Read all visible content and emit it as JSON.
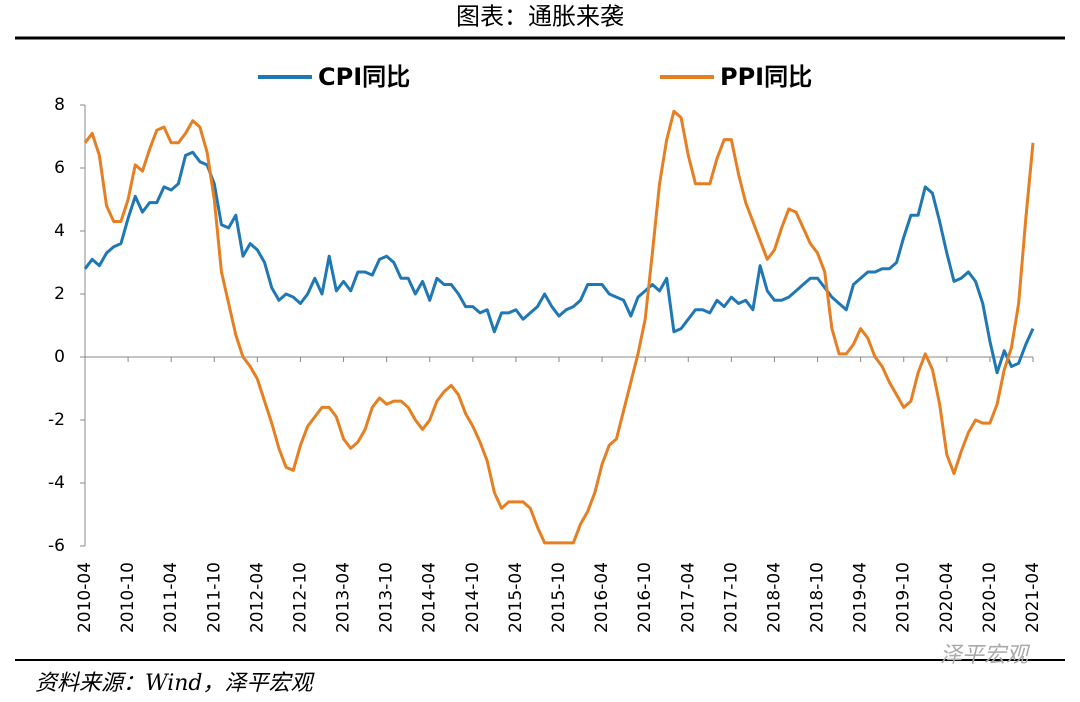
{
  "chart_data": {
    "type": "line",
    "title": "图表：通胀来袭",
    "source": "资料来源：Wind，泽平宏观",
    "watermark": "泽平宏观",
    "categories": [
      "2010-04",
      null,
      null,
      null,
      null,
      null,
      "2010-10",
      null,
      null,
      null,
      null,
      null,
      "2011-04",
      null,
      null,
      null,
      null,
      null,
      "2011-10",
      null,
      null,
      null,
      null,
      null,
      "2012-04",
      null,
      null,
      null,
      null,
      null,
      "2012-10",
      null,
      null,
      null,
      null,
      null,
      "2013-04",
      null,
      null,
      null,
      null,
      null,
      "2013-10",
      null,
      null,
      null,
      null,
      null,
      "2014-04",
      null,
      null,
      null,
      null,
      null,
      "2014-10",
      null,
      null,
      null,
      null,
      null,
      "2015-04",
      null,
      null,
      null,
      null,
      null,
      "2015-10",
      null,
      null,
      null,
      null,
      null,
      "2016-04",
      null,
      null,
      null,
      null,
      null,
      "2016-10",
      null,
      null,
      null,
      null,
      null,
      "2017-04",
      null,
      null,
      null,
      null,
      null,
      "2017-10",
      null,
      null,
      null,
      null,
      null,
      "2018-04",
      null,
      null,
      null,
      null,
      null,
      "2018-10",
      null,
      null,
      null,
      null,
      null,
      "2019-04",
      null,
      null,
      null,
      null,
      null,
      "2019-10",
      null,
      null,
      null,
      null,
      null,
      "2020-04",
      null,
      null,
      null,
      null,
      null,
      "2020-10",
      null,
      null,
      null,
      null,
      null,
      "2021-04"
    ],
    "series": [
      {
        "name": "CPI同比",
        "color": "#1f77b4",
        "values": [
          2.8,
          3.1,
          2.9,
          3.3,
          3.5,
          3.6,
          4.4,
          5.1,
          4.6,
          4.9,
          4.9,
          5.4,
          5.3,
          5.5,
          6.4,
          6.5,
          6.2,
          6.1,
          5.5,
          4.2,
          4.1,
          4.5,
          3.2,
          3.6,
          3.4,
          3.0,
          2.2,
          1.8,
          2.0,
          1.9,
          1.7,
          2.0,
          2.5,
          2.0,
          3.2,
          2.1,
          2.4,
          2.1,
          2.7,
          2.7,
          2.6,
          3.1,
          3.2,
          3.0,
          2.5,
          2.5,
          2.0,
          2.4,
          1.8,
          2.5,
          2.3,
          2.3,
          2.0,
          1.6,
          1.6,
          1.4,
          1.5,
          0.8,
          1.4,
          1.4,
          1.5,
          1.2,
          1.4,
          1.6,
          2.0,
          1.6,
          1.3,
          1.5,
          1.6,
          1.8,
          2.3,
          2.3,
          2.3,
          2.0,
          1.9,
          1.8,
          1.3,
          1.9,
          2.1,
          2.3,
          2.1,
          2.5,
          0.8,
          0.9,
          1.2,
          1.5,
          1.5,
          1.4,
          1.8,
          1.6,
          1.9,
          1.7,
          1.8,
          1.5,
          2.9,
          2.1,
          1.8,
          1.8,
          1.9,
          2.1,
          2.3,
          2.5,
          2.5,
          2.2,
          1.9,
          1.7,
          1.5,
          2.3,
          2.5,
          2.7,
          2.7,
          2.8,
          2.8,
          3.0,
          3.8,
          4.5,
          4.5,
          5.4,
          5.2,
          4.3,
          3.3,
          2.4,
          2.5,
          2.7,
          2.4,
          1.7,
          0.5,
          -0.5,
          0.2,
          -0.3,
          -0.2,
          0.4,
          0.9
        ]
      },
      {
        "name": "PPI同比",
        "color": "#e67e22",
        "values": [
          6.8,
          7.1,
          6.4,
          4.8,
          4.3,
          4.3,
          5.0,
          6.1,
          5.9,
          6.6,
          7.2,
          7.3,
          6.8,
          6.8,
          7.1,
          7.5,
          7.3,
          6.5,
          5.0,
          2.7,
          1.7,
          0.7,
          0.0,
          -0.3,
          -0.7,
          -1.4,
          -2.1,
          -2.9,
          -3.5,
          -3.6,
          -2.8,
          -2.2,
          -1.9,
          -1.6,
          -1.6,
          -1.9,
          -2.6,
          -2.9,
          -2.7,
          -2.3,
          -1.6,
          -1.3,
          -1.5,
          -1.4,
          -1.4,
          -1.6,
          -2.0,
          -2.3,
          -2.0,
          -1.4,
          -1.1,
          -0.9,
          -1.2,
          -1.8,
          -2.2,
          -2.7,
          -3.3,
          -4.3,
          -4.8,
          -4.6,
          -4.6,
          -4.6,
          -4.8,
          -5.4,
          -5.9,
          -5.9,
          -5.9,
          -5.9,
          -5.9,
          -5.3,
          -4.9,
          -4.3,
          -3.4,
          -2.8,
          -2.6,
          -1.7,
          -0.8,
          0.1,
          1.2,
          3.3,
          5.5,
          6.9,
          7.8,
          7.6,
          6.4,
          5.5,
          5.5,
          5.5,
          6.3,
          6.9,
          6.9,
          5.8,
          4.9,
          4.3,
          3.7,
          3.1,
          3.4,
          4.1,
          4.7,
          4.6,
          4.1,
          3.6,
          3.3,
          2.7,
          0.9,
          0.1,
          0.1,
          0.4,
          0.9,
          0.6,
          0.0,
          -0.3,
          -0.8,
          -1.2,
          -1.6,
          -1.4,
          -0.5,
          0.1,
          -0.4,
          -1.5,
          -3.1,
          -3.7,
          -3.0,
          -2.4,
          -2.0,
          -2.1,
          -2.1,
          -1.5,
          -0.4,
          0.3,
          1.7,
          4.4,
          6.8
        ]
      }
    ],
    "ylim": [
      -6,
      8
    ],
    "yticks": [
      -6,
      -4,
      -2,
      0,
      2,
      4,
      6,
      8
    ]
  }
}
